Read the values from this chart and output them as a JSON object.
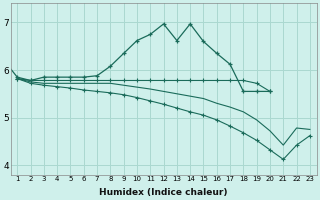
{
  "xlabel": "Humidex (Indice chaleur)",
  "bg_color": "#cff0eb",
  "grid_color": "#aad8d0",
  "line_color": "#1a6b5a",
  "xlim": [
    0.5,
    23.5
  ],
  "ylim": [
    3.8,
    7.4
  ],
  "xticks": [
    1,
    2,
    3,
    4,
    5,
    6,
    7,
    8,
    9,
    10,
    11,
    12,
    13,
    14,
    15,
    16,
    17,
    18,
    19,
    20,
    21,
    22,
    23
  ],
  "yticks": [
    4,
    5,
    6,
    7
  ],
  "curve1_x": [
    0,
    1,
    2,
    3,
    4,
    5,
    6,
    7,
    8,
    9,
    10,
    11,
    12,
    13,
    14,
    15,
    16,
    17,
    18,
    19,
    20
  ],
  "curve1_y": [
    6.2,
    5.85,
    5.78,
    5.85,
    5.85,
    5.85,
    5.85,
    5.88,
    6.08,
    6.35,
    6.62,
    6.75,
    6.97,
    6.62,
    6.97,
    6.6,
    6.35,
    6.12,
    5.55,
    5.55,
    5.55
  ],
  "curve2_x": [
    1,
    2,
    3,
    4,
    5,
    6,
    7,
    8,
    9,
    10,
    11,
    12,
    13,
    14,
    15,
    16,
    17,
    18,
    19,
    20
  ],
  "curve2_y": [
    5.82,
    5.78,
    5.78,
    5.78,
    5.78,
    5.78,
    5.78,
    5.78,
    5.78,
    5.78,
    5.78,
    5.78,
    5.78,
    5.78,
    5.78,
    5.78,
    5.78,
    5.78,
    5.72,
    5.55
  ],
  "curve3_x": [
    1,
    2,
    3,
    4,
    5,
    6,
    7,
    8,
    9,
    10,
    11,
    12,
    13,
    14,
    15,
    16,
    17,
    18,
    19,
    20,
    21,
    22,
    23
  ],
  "curve3_y": [
    5.82,
    5.75,
    5.72,
    5.72,
    5.72,
    5.72,
    5.72,
    5.72,
    5.68,
    5.64,
    5.6,
    5.55,
    5.5,
    5.45,
    5.4,
    5.3,
    5.22,
    5.12,
    4.95,
    4.72,
    4.42,
    4.78,
    4.75
  ],
  "curve4_x": [
    1,
    2,
    3,
    4,
    5,
    6,
    7,
    8,
    9,
    10,
    11,
    12,
    13,
    14,
    15,
    16,
    17,
    18,
    19,
    20,
    21,
    22,
    23
  ],
  "curve4_y": [
    5.82,
    5.72,
    5.68,
    5.65,
    5.62,
    5.58,
    5.55,
    5.52,
    5.48,
    5.42,
    5.35,
    5.28,
    5.2,
    5.12,
    5.05,
    4.95,
    4.82,
    4.68,
    4.52,
    4.32,
    4.12,
    4.42,
    4.62
  ]
}
